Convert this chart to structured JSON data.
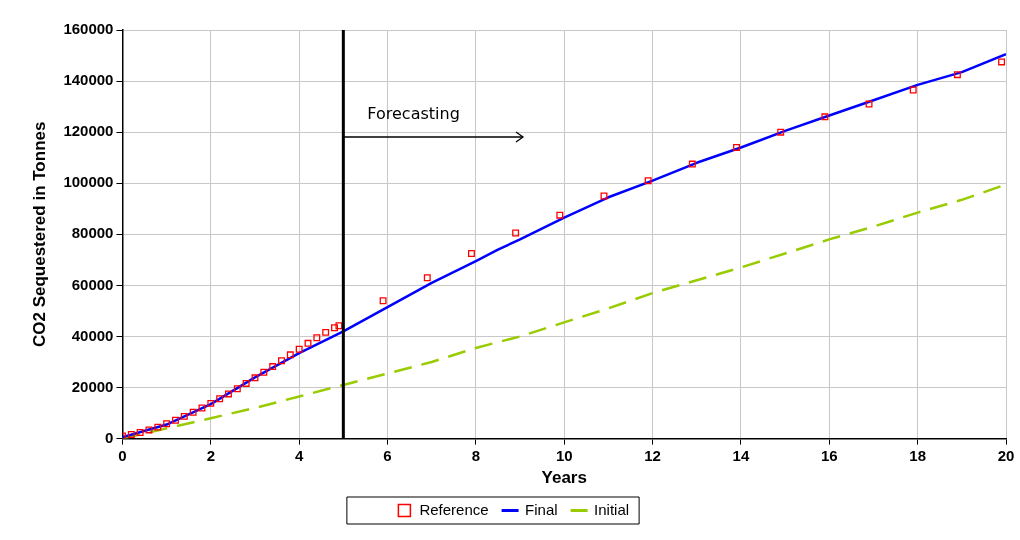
{
  "chart_data": {
    "type": "line",
    "xlabel": "Years",
    "ylabel": "CO2 Sequestered in Tonnes",
    "xlim": [
      0,
      20
    ],
    "xticks": [
      0,
      2,
      4,
      6,
      8,
      10,
      12,
      14,
      16,
      18,
      20
    ],
    "ylim": [
      0,
      160000
    ],
    "yticks": [
      0,
      20000,
      40000,
      60000,
      80000,
      100000,
      120000,
      140000,
      160000
    ],
    "grid": true,
    "legend": "bottom",
    "ref_lines": [
      {
        "axis": "x",
        "value": 5,
        "color": "#000000"
      }
    ],
    "annotations": [
      {
        "text": "Forecasting",
        "x": 5,
        "y": 118000
      }
    ],
    "series": [
      {
        "name": "Reference",
        "type": "scatter",
        "marker": "square",
        "color": "#ff0000",
        "x": [
          0,
          0.2,
          0.4,
          0.6,
          0.8,
          1.0,
          1.2,
          1.4,
          1.6,
          1.8,
          2.0,
          2.2,
          2.4,
          2.6,
          2.8,
          3.0,
          3.2,
          3.4,
          3.6,
          3.8,
          4.0,
          4.2,
          4.4,
          4.6,
          4.8,
          4.9,
          5.9,
          6.9,
          7.9,
          8.9,
          9.9,
          10.9,
          11.9,
          12.9,
          13.9,
          14.9,
          15.9,
          16.9,
          17.9,
          18.9,
          19.9
        ],
        "values": [
          1000,
          1600,
          2400,
          3400,
          4500,
          5800,
          7200,
          8700,
          10300,
          12000,
          13800,
          15600,
          17500,
          19500,
          21600,
          23800,
          26000,
          28200,
          30500,
          32800,
          35000,
          37300,
          39500,
          41600,
          43400,
          44200,
          54000,
          63000,
          72500,
          80500,
          87500,
          95000,
          101000,
          107500,
          114000,
          120000,
          126000,
          131000,
          136500,
          142500,
          147500
        ]
      },
      {
        "name": "Final",
        "marker": "none",
        "line_style": "solid",
        "color": "#0000ff",
        "x": [
          0,
          1,
          2,
          3,
          4,
          5,
          6,
          7,
          8,
          8.5,
          9,
          10,
          11,
          12,
          13,
          14,
          15,
          16,
          17,
          18,
          19,
          20
        ],
        "values": [
          500,
          5500,
          13500,
          24000,
          33500,
          42000,
          51500,
          61000,
          69500,
          74000,
          78000,
          86500,
          94500,
          101000,
          108000,
          114000,
          120500,
          126500,
          132500,
          138500,
          143500,
          150500
        ]
      },
      {
        "name": "Initial",
        "marker": "none",
        "line_style": "dashed",
        "color": "#99cc00",
        "x": [
          0,
          1,
          2,
          3,
          4,
          5,
          6,
          7,
          8,
          9,
          10,
          11,
          12,
          13,
          14,
          15,
          16,
          17,
          18,
          19,
          20
        ],
        "values": [
          0,
          4000,
          8000,
          12000,
          16500,
          21000,
          25500,
          30000,
          35500,
          40000,
          45500,
          51000,
          57000,
          62000,
          67000,
          72500,
          78000,
          83000,
          88500,
          93500,
          99500
        ]
      }
    ]
  }
}
